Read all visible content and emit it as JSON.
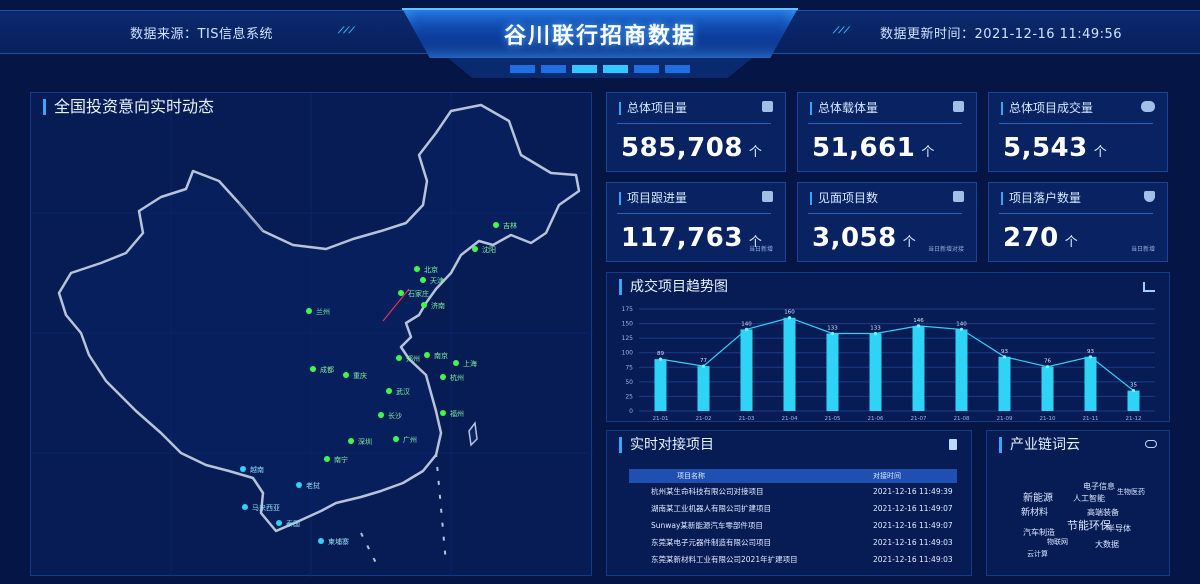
{
  "header": {
    "title": "谷川联行招商数据",
    "data_source": "数据来源：TIS信息系统",
    "update_time": "数据更新时间：2021-12-16 11:49:56"
  },
  "map": {
    "title": "全国投资意向实时动态",
    "cities": [
      {
        "name": "吉林"
      },
      {
        "name": "沈阳"
      },
      {
        "name": "北京"
      },
      {
        "name": "天津"
      },
      {
        "name": "石家庄"
      },
      {
        "name": "济南"
      },
      {
        "name": "兰州"
      },
      {
        "name": "郑州"
      },
      {
        "name": "南京"
      },
      {
        "name": "上海"
      },
      {
        "name": "成都"
      },
      {
        "name": "重庆"
      },
      {
        "name": "武汉"
      },
      {
        "name": "杭州"
      },
      {
        "name": "长沙"
      },
      {
        "name": "福州"
      },
      {
        "name": "广州"
      },
      {
        "name": "深圳"
      },
      {
        "name": "南宁"
      },
      {
        "name": "越南"
      },
      {
        "name": "老挝"
      },
      {
        "name": "泰国"
      },
      {
        "name": "柬埔寨"
      },
      {
        "name": "马来西亚"
      }
    ]
  },
  "cards": [
    {
      "label": "总体项目量",
      "value": "585,708",
      "unit": "个",
      "note": ""
    },
    {
      "label": "总体载体量",
      "value": "51,661",
      "unit": "个",
      "note": ""
    },
    {
      "label": "总体项目成交量",
      "value": "5,543",
      "unit": "个",
      "note": ""
    },
    {
      "label": "项目跟进量",
      "value": "117,763",
      "unit": "个",
      "note": "当日新增"
    },
    {
      "label": "见面项目数",
      "value": "3,058",
      "unit": "个",
      "note": "当日新增对接"
    },
    {
      "label": "项目落户数量",
      "value": "270",
      "unit": "个",
      "note": "当日新增"
    }
  ],
  "chart": {
    "title": "成交项目趋势图"
  },
  "chart_data": {
    "type": "bar",
    "title": "成交项目趋势图",
    "categories": [
      "21-01",
      "21-02",
      "21-03",
      "21-04",
      "21-05",
      "21-06",
      "21-07",
      "21-08",
      "21-09",
      "21-10",
      "21-11",
      "21-12"
    ],
    "values": [
      89,
      77,
      140,
      160,
      133,
      133,
      146,
      140,
      93,
      76,
      93,
      35
    ],
    "line": [
      89,
      77,
      140,
      160,
      133,
      133,
      146,
      140,
      93,
      76,
      93,
      35
    ],
    "yticks": [
      0,
      25,
      50,
      75,
      100,
      125,
      150,
      175
    ],
    "ylim": [
      0,
      175
    ],
    "grid": true,
    "legend": "none"
  },
  "table": {
    "title": "实时对接项目",
    "columns": [
      "项目名称",
      "对接时间"
    ],
    "rows": [
      {
        "name": "杭州某生命科技有限公司对接项目",
        "time": "2021-12-16 11:49:39"
      },
      {
        "name": "湖南某工业机器人有限公司扩建项目",
        "time": "2021-12-16 11:49:07"
      },
      {
        "name": "Sunway某新能源汽车零部件项目",
        "time": "2021-12-16 11:49:07"
      },
      {
        "name": "东莞某电子元器件制造有限公司项目",
        "time": "2021-12-16 11:49:03"
      },
      {
        "name": "东莞某新材料工业有限公司2021年扩建项目",
        "time": "2021-12-16 11:49:03"
      }
    ]
  },
  "cloud": {
    "title": "产业链词云",
    "words": [
      {
        "text": "电子信息"
      },
      {
        "text": "新能源"
      },
      {
        "text": "人工智能"
      },
      {
        "text": "生物医药"
      },
      {
        "text": "新材料"
      },
      {
        "text": "高端装备"
      },
      {
        "text": "节能环保"
      },
      {
        "text": "汽车制造"
      },
      {
        "text": "半导体"
      },
      {
        "text": "物联网"
      },
      {
        "text": "大数据"
      },
      {
        "text": "云计算"
      }
    ]
  },
  "colors": {
    "background": "#051545",
    "accent": "#33c6ff",
    "bar": "#2fd3f5",
    "city_dot": "#3dfc4a"
  },
  "icons": [
    "stripe-deco-icon",
    "money-bag-icon",
    "building-icon",
    "handshake-icon",
    "calendar-icon",
    "briefcase-icon",
    "shield-icon",
    "chart-icon",
    "clipboard-icon",
    "cloud-icon"
  ]
}
